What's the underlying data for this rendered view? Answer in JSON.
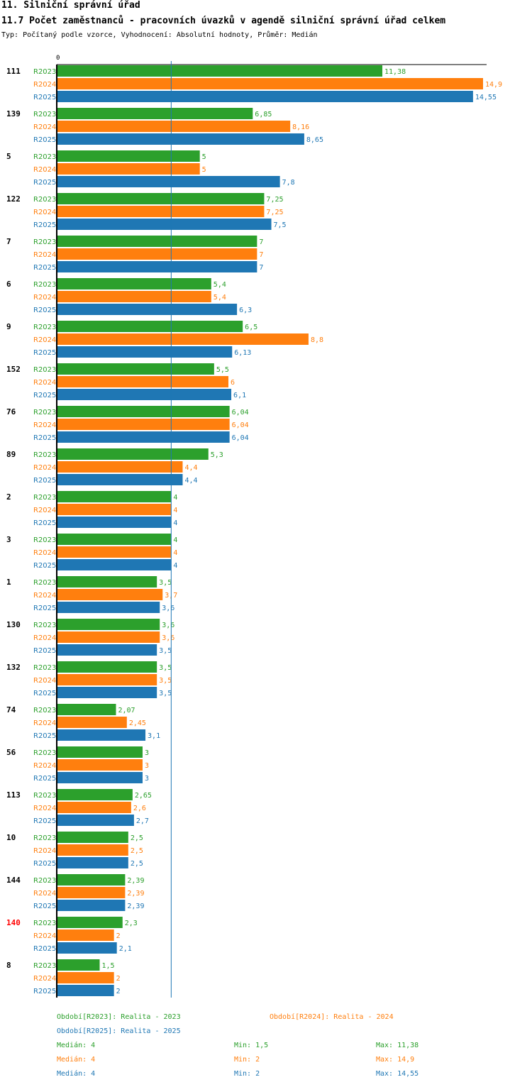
{
  "header": {
    "section_title": "11. Silniční správní úřad",
    "chart_title": "11.7 Počet zaměstnanců - pracovních úvazků v agendě silniční správní úřad celkem",
    "subtitle": "Typ: Počítaný podle vzorce, Vyhodnocení: Absolutní hodnoty, Průměr: Medián"
  },
  "colors": {
    "R2023": "#2ca02c",
    "R2024": "#ff7f0e",
    "R2025": "#1f77b4",
    "highlight": "#ff0000"
  },
  "chart_data": {
    "type": "bar",
    "orientation": "horizontal",
    "title": "11.7 Počet zaměstnanců - pracovních úvazků v agendě silniční správní úřad celkem",
    "x_tick_labels": [
      "0"
    ],
    "xlim": [
      0,
      14.9
    ],
    "median_line": 4,
    "series_names": [
      "R2023",
      "R2024",
      "R2025"
    ],
    "highlighted_category": "140",
    "categories": [
      "111",
      "139",
      "5",
      "122",
      "7",
      "6",
      "9",
      "152",
      "76",
      "89",
      "2",
      "3",
      "1",
      "130",
      "132",
      "74",
      "56",
      "113",
      "10",
      "144",
      "140",
      "8"
    ],
    "series": [
      {
        "name": "R2023",
        "values": [
          11.38,
          6.85,
          5,
          7.25,
          7,
          5.4,
          6.5,
          5.5,
          6.04,
          5.3,
          4,
          4,
          3.5,
          3.6,
          3.5,
          2.07,
          3,
          2.65,
          2.5,
          2.39,
          2.3,
          1.5
        ],
        "labels": [
          "11,38",
          "6,85",
          "5",
          "7,25",
          "7",
          "5,4",
          "6,5",
          "5,5",
          "6,04",
          "5,3",
          "4",
          "4",
          "3,5",
          "3,6",
          "3,5",
          "2,07",
          "3",
          "2,65",
          "2,5",
          "2,39",
          "2,3",
          "1,5"
        ]
      },
      {
        "name": "R2024",
        "values": [
          14.9,
          8.16,
          5,
          7.25,
          7,
          5.4,
          8.8,
          6,
          6.04,
          4.4,
          4,
          4,
          3.7,
          3.6,
          3.5,
          2.45,
          3,
          2.6,
          2.5,
          2.39,
          2,
          2
        ],
        "labels": [
          "14,9",
          "8,16",
          "5",
          "7,25",
          "7",
          "5,4",
          "8,8",
          "6",
          "6,04",
          "4,4",
          "4",
          "4",
          "3,7",
          "3,6",
          "3,5",
          "2,45",
          "3",
          "2,6",
          "2,5",
          "2,39",
          "2",
          "2"
        ]
      },
      {
        "name": "R2025",
        "values": [
          14.55,
          8.65,
          7.8,
          7.5,
          7,
          6.3,
          6.13,
          6.1,
          6.04,
          4.4,
          4,
          4,
          3.6,
          3.5,
          3.5,
          3.1,
          3,
          2.7,
          2.5,
          2.39,
          2.1,
          2
        ],
        "labels": [
          "14,55",
          "8,65",
          "7,8",
          "7,5",
          "7",
          "6,3",
          "6,13",
          "6,1",
          "6,04",
          "4,4",
          "4",
          "4",
          "3,6",
          "3,5",
          "3,5",
          "3,1",
          "3",
          "2,7",
          "2,5",
          "2,39",
          "2,1",
          "2"
        ]
      }
    ]
  },
  "legend": {
    "periods": [
      {
        "series": "R2023",
        "text": "Období[R2023]: Realita - 2023"
      },
      {
        "series": "R2024",
        "text": "Období[R2024]: Realita - 2024"
      },
      {
        "series": "R2025",
        "text": "Období[R2025]: Realita - 2025"
      }
    ],
    "stats": [
      {
        "series": "R2023",
        "median": "Medián: 4",
        "min": "Min: 1,5",
        "max": "Max: 11,38"
      },
      {
        "series": "R2024",
        "median": "Medián: 4",
        "min": "Min: 2",
        "max": "Max: 14,9"
      },
      {
        "series": "R2025",
        "median": "Medián: 4",
        "min": "Min: 2",
        "max": "Max: 14,55"
      }
    ]
  }
}
